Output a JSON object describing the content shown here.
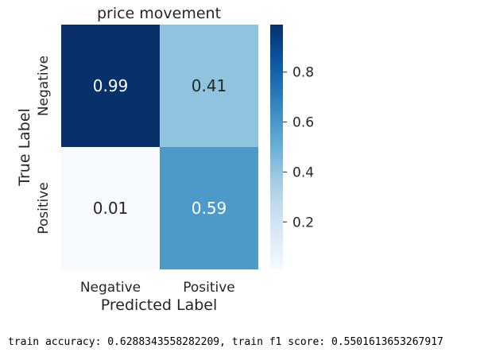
{
  "chart_data": {
    "type": "heatmap",
    "title": "price movement",
    "xlabel": "Predicted Label",
    "ylabel": "True Label",
    "x_categories": [
      "Negative",
      "Positive"
    ],
    "y_categories": [
      "Negative",
      "Positive"
    ],
    "values": [
      [
        0.99,
        0.41
      ],
      [
        0.01,
        0.59
      ]
    ],
    "value_labels": [
      [
        "0.99",
        "0.41"
      ],
      [
        "0.01",
        "0.59"
      ]
    ],
    "colormap": "Blues",
    "colorbar": {
      "min": 0.01,
      "max": 0.99,
      "ticks": [
        0.2,
        0.4,
        0.6,
        0.8
      ],
      "tick_labels": [
        "0.2",
        "0.4",
        "0.6",
        "0.8"
      ]
    }
  },
  "footer_text": "train accuracy: 0.6288343558282209, train f1 score: 0.5501613653267917"
}
